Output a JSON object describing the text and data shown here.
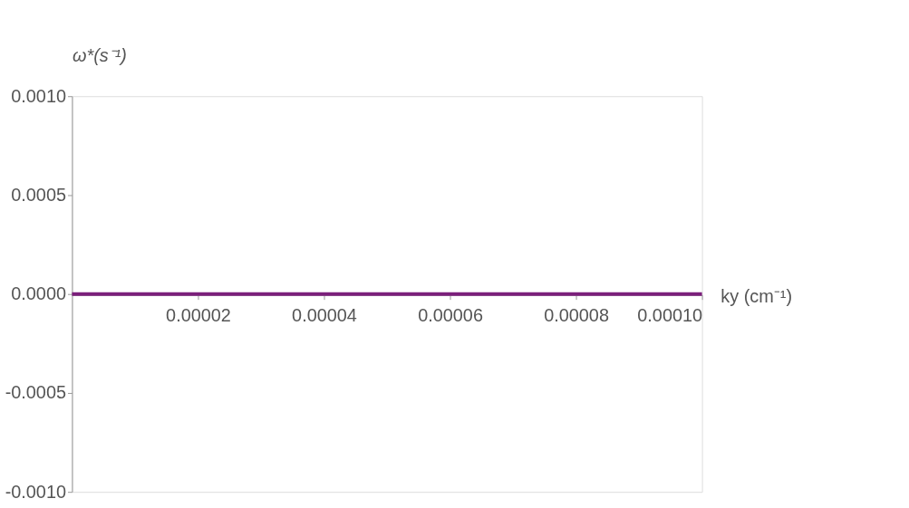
{
  "chart_data": {
    "type": "line",
    "xlabel": "ky (cm⁻¹)",
    "ylabel": "ω*(s⁻¹)",
    "x": [
      0,
      0.0001
    ],
    "series": [
      {
        "color": "#7b1f7b",
        "values": [
          0,
          0
        ]
      }
    ],
    "xlim": [
      0,
      0.0001
    ],
    "xticks": [
      {
        "value": 2e-05,
        "label": "0.00002"
      },
      {
        "value": 4e-05,
        "label": "0.00004"
      },
      {
        "value": 6e-05,
        "label": "0.00006"
      },
      {
        "value": 8e-05,
        "label": "0.00008"
      },
      {
        "value": 0.0001,
        "label": "0.00010"
      }
    ],
    "ylim": [
      -0.001,
      0.001
    ],
    "yticks": [
      {
        "value": -0.001,
        "label": "-0.0010"
      },
      {
        "value": -0.0005,
        "label": "-0.0005"
      },
      {
        "value": 0,
        "label": "0.0000"
      },
      {
        "value": 0.0005,
        "label": "0.0005"
      },
      {
        "value": 0.001,
        "label": "0.0010"
      }
    ],
    "grid": false,
    "legend": false,
    "marker": "none",
    "line_style": "solid"
  }
}
